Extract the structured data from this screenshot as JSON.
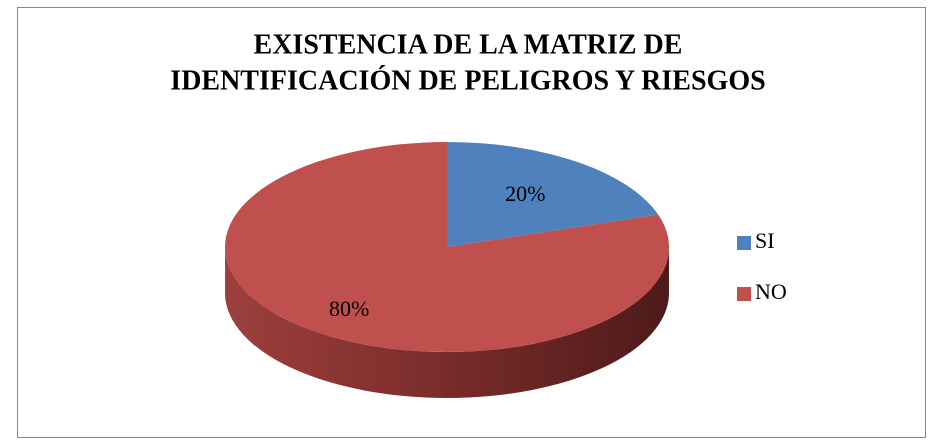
{
  "chart_data": {
    "type": "pie",
    "title": [
      "EXISTENCIA DE LA MATRIZ DE",
      "IDENTIFICACIÓN DE PELIGROS Y RIESGOS"
    ],
    "categories": [
      "SI",
      "NO"
    ],
    "values": [
      20,
      80
    ],
    "value_labels": [
      "20%",
      "80%"
    ],
    "colors": [
      "#4f81bd",
      "#c0504d"
    ],
    "legend": "right"
  }
}
